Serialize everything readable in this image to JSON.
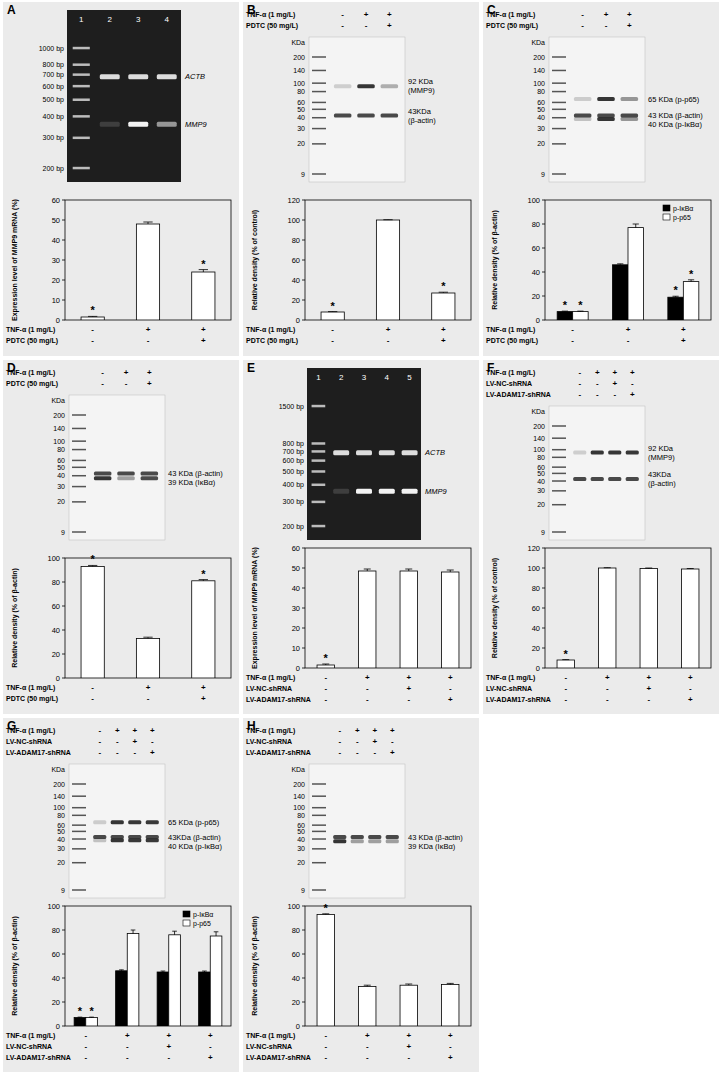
{
  "panels": [
    {
      "letter": "A",
      "gel": {
        "lanes": [
          "1",
          "2",
          "3",
          "4"
        ],
        "ladder": [
          {
            "value": 1000,
            "label": "1000 bp"
          },
          {
            "value": 800,
            "label": "800 bp"
          },
          {
            "value": 700,
            "label": "700 bp"
          },
          {
            "value": 600,
            "label": "600 bp"
          },
          {
            "value": 500,
            "label": "500 bp"
          },
          {
            "value": 400,
            "label": "400 bp"
          },
          {
            "value": 300,
            "label": "300 bp"
          },
          {
            "value": 200,
            "label": "200 bp"
          }
        ],
        "bands": [
          [
            "ACTB"
          ],
          [
            "MMP9"
          ]
        ]
      },
      "conditions": [
        {
          "label": "TNF-α (1 mg/L)",
          "signs": [
            "-",
            "+",
            "+"
          ]
        },
        {
          "label": "PDTC (50 mg/L)",
          "signs": [
            "-",
            "-",
            "+"
          ]
        }
      ]
    },
    {
      "letter": "B",
      "blot": {
        "unit": "KDa",
        "ladder": [
          200,
          140,
          100,
          80,
          60,
          50,
          40,
          30,
          20,
          9
        ],
        "bands": [
          [
            "92 KDa",
            "(MMP9)"
          ],
          [
            "43KDa",
            "(β-actin)"
          ]
        ]
      },
      "conditions": [
        {
          "label": "TNF-α (1 mg/L)",
          "signs": [
            "-",
            "+",
            "+"
          ]
        },
        {
          "label": "PDTC (50 mg/L)",
          "signs": [
            "-",
            "-",
            "+"
          ]
        }
      ]
    },
    {
      "letter": "C",
      "blot": {
        "unit": "KDa",
        "ladder": [
          200,
          140,
          100,
          80,
          60,
          50,
          40,
          30,
          20,
          9
        ],
        "bands": [
          [
            "65 KDa (p-p65)"
          ],
          [
            "43 KDa (β-actin)"
          ],
          [
            "40 KDa (p-IκBα)"
          ]
        ]
      },
      "conditions": [
        {
          "label": "TNF-α (1 mg/L)",
          "signs": [
            "-",
            "+",
            "+"
          ]
        },
        {
          "label": "PDTC (50 mg/L)",
          "signs": [
            "-",
            "-",
            "+"
          ]
        }
      ]
    },
    {
      "letter": "D",
      "blot": {
        "unit": "KDa",
        "ladder": [
          200,
          140,
          100,
          80,
          60,
          50,
          40,
          30,
          20,
          9
        ],
        "bands": [
          [
            "43 KDa (β-actin)"
          ],
          [
            "39 KDa (IκBα)"
          ]
        ]
      },
      "conditions": [
        {
          "label": "TNF-α (1 mg/L)",
          "signs": [
            "-",
            "+",
            "+"
          ]
        },
        {
          "label": "PDTC (50 mg/L)",
          "signs": [
            "-",
            "-",
            "+"
          ]
        }
      ]
    },
    {
      "letter": "E",
      "gel": {
        "lanes": [
          "1",
          "2",
          "3",
          "4",
          "5"
        ],
        "ladder": [
          {
            "value": 1500,
            "label": "1500 bp"
          },
          {
            "value": 800,
            "label": "800 bp"
          },
          {
            "value": 700,
            "label": "700 bp"
          },
          {
            "value": 600,
            "label": "600 bp"
          },
          {
            "value": 500,
            "label": "500 bp"
          },
          {
            "value": 400,
            "label": "400 bp"
          },
          {
            "value": 300,
            "label": "300 bp"
          },
          {
            "value": 200,
            "label": "200 bp"
          }
        ],
        "bands": [
          [
            "ACTB"
          ],
          [
            "MMP9"
          ]
        ]
      },
      "conditions": [
        {
          "label": "TNF-α (1 mg/L)",
          "signs": [
            "-",
            "+",
            "+",
            "+"
          ]
        },
        {
          "label": "LV-NC-shRNA",
          "signs": [
            "-",
            "-",
            "+",
            "-"
          ]
        },
        {
          "label": "LV-ADAM17-shRNA",
          "signs": [
            "-",
            "-",
            "-",
            "+"
          ]
        }
      ]
    },
    {
      "letter": "F",
      "blot": {
        "unit": "KDa",
        "ladder": [
          200,
          140,
          100,
          80,
          60,
          50,
          40,
          30,
          20,
          9
        ],
        "bands": [
          [
            "92 KDa",
            "(MMP9)"
          ],
          [
            "43KDa",
            "(β-actin)"
          ]
        ]
      },
      "conditions": [
        {
          "label": "TNF-α (1 mg/L)",
          "signs": [
            "-",
            "+",
            "+",
            "+"
          ]
        },
        {
          "label": "LV-NC-shRNA",
          "signs": [
            "-",
            "-",
            "+",
            "-"
          ]
        },
        {
          "label": "LV-ADAM17-shRNA",
          "signs": [
            "-",
            "-",
            "-",
            "+"
          ]
        }
      ]
    },
    {
      "letter": "G",
      "blot": {
        "unit": "KDa",
        "ladder": [
          200,
          140,
          100,
          80,
          60,
          50,
          40,
          30,
          20,
          9
        ],
        "bands": [
          [
            "65 KDa (p-p65)"
          ],
          [
            "43KDa (β-actin)"
          ],
          [
            "40 KDa (p-IκBα)"
          ]
        ]
      },
      "conditions": [
        {
          "label": "TNF-α (1 mg/L)",
          "signs": [
            "-",
            "+",
            "+",
            "+"
          ]
        },
        {
          "label": "LV-NC-shRNA",
          "signs": [
            "-",
            "-",
            "+",
            "-"
          ]
        },
        {
          "label": "LV-ADAM17-shRNA",
          "signs": [
            "-",
            "-",
            "-",
            "+"
          ]
        }
      ]
    },
    {
      "letter": "H",
      "blot": {
        "unit": "KDa",
        "ladder": [
          200,
          140,
          100,
          80,
          60,
          50,
          40,
          30,
          20,
          9
        ],
        "bands": [
          [
            "43 KDa (β-actin)"
          ],
          [
            "39 KDa (IκBα)"
          ]
        ]
      },
      "conditions": [
        {
          "label": "TNF-α (1 mg/L)",
          "signs": [
            "-",
            "+",
            "+",
            "+"
          ]
        },
        {
          "label": "LV-NC-shRNA",
          "signs": [
            "-",
            "-",
            "+",
            "-"
          ]
        },
        {
          "label": "LV-ADAM17-shRNA",
          "signs": [
            "-",
            "-",
            "-",
            "+"
          ]
        }
      ]
    }
  ],
  "chart_data": [
    {
      "type": "bar",
      "ylabel": "Expression level of MMP9 mRNA (%)",
      "categories": [
        null,
        null,
        null
      ],
      "ylim": [
        0,
        60
      ],
      "yticks": [
        0,
        10,
        20,
        30,
        40,
        50,
        60
      ],
      "grid": false,
      "series": [
        {
          "color": "#ffffff",
          "values": [
            1.5,
            48,
            24
          ],
          "errors": [
            0.3,
            1,
            1.2
          ],
          "annotations": [
            "*",
            null,
            "*"
          ]
        }
      ]
    },
    {
      "type": "bar",
      "ylabel": "Relative density (% of control)",
      "categories": [
        null,
        null,
        null
      ],
      "ylim": [
        0,
        120
      ],
      "yticks": [
        0,
        20,
        40,
        60,
        80,
        100,
        120
      ],
      "grid": false,
      "series": [
        {
          "color": "#ffffff",
          "values": [
            8,
            100,
            27
          ],
          "errors": [
            0.4,
            0.3,
            0.8
          ],
          "annotations": [
            "*",
            null,
            "*"
          ]
        }
      ]
    },
    {
      "type": "bar",
      "ylabel": "Relative density (% of β-actin)",
      "categories": [
        null,
        null,
        null
      ],
      "ylim": [
        0,
        100
      ],
      "yticks": [
        0,
        20,
        40,
        60,
        80,
        100
      ],
      "grid": false,
      "legend": "upper right",
      "series": [
        {
          "name": "p-IκBα",
          "color": "#000000",
          "values": [
            7,
            46,
            19
          ],
          "errors": [
            0.4,
            0.8,
            0.8
          ],
          "annotations": [
            "*",
            null,
            "*"
          ]
        },
        {
          "name": "p-p65",
          "color": "#ffffff",
          "values": [
            7,
            77,
            32
          ],
          "errors": [
            0.4,
            3,
            1.5
          ],
          "annotations": [
            "*",
            null,
            "*"
          ]
        }
      ]
    },
    {
      "type": "bar",
      "ylabel": "Relative density (% of β-actin)",
      "categories": [
        null,
        null,
        null
      ],
      "ylim": [
        0,
        100
      ],
      "yticks": [
        0,
        20,
        40,
        60,
        80,
        100
      ],
      "grid": false,
      "series": [
        {
          "color": "#ffffff",
          "values": [
            93,
            33,
            81
          ],
          "errors": [
            0.8,
            1,
            1
          ],
          "annotations": [
            "*",
            null,
            "*"
          ]
        }
      ]
    },
    {
      "type": "bar",
      "ylabel": "Expression level of MMP9 mRNA (%)",
      "categories": [
        null,
        null,
        null,
        null
      ],
      "ylim": [
        0,
        60
      ],
      "yticks": [
        0,
        10,
        20,
        30,
        40,
        50,
        60
      ],
      "grid": false,
      "series": [
        {
          "color": "#ffffff",
          "values": [
            1.5,
            48.5,
            48.5,
            48
          ],
          "errors": [
            0.5,
            1,
            1,
            1
          ],
          "annotations": [
            "*",
            null,
            null,
            null
          ]
        }
      ]
    },
    {
      "type": "bar",
      "ylabel": "Relative density (% of control)",
      "categories": [
        null,
        null,
        null,
        null
      ],
      "ylim": [
        0,
        120
      ],
      "yticks": [
        0,
        20,
        40,
        60,
        80,
        100,
        120
      ],
      "grid": false,
      "series": [
        {
          "color": "#ffffff",
          "values": [
            8,
            100,
            99.5,
            99
          ],
          "errors": [
            0.4,
            0.3,
            0.5,
            0.5
          ],
          "annotations": [
            "*",
            null,
            null,
            null
          ]
        }
      ]
    },
    {
      "type": "bar",
      "ylabel": "Relative density (% of β-actin)",
      "categories": [
        null,
        null,
        null,
        null
      ],
      "ylim": [
        0,
        100
      ],
      "yticks": [
        0,
        20,
        40,
        60,
        80,
        100
      ],
      "grid": false,
      "legend": "upper right",
      "series": [
        {
          "name": "p-IκBα",
          "color": "#000000",
          "values": [
            7,
            46,
            45,
            45
          ],
          "errors": [
            0.4,
            0.8,
            0.8,
            0.8
          ],
          "annotations": [
            "*",
            null,
            null,
            null
          ]
        },
        {
          "name": "p-p65",
          "color": "#ffffff",
          "values": [
            7,
            77,
            76,
            75
          ],
          "errors": [
            0.4,
            3,
            3,
            3.5
          ],
          "annotations": [
            "*",
            null,
            null,
            null
          ]
        }
      ]
    },
    {
      "type": "bar",
      "ylabel": "Relative density (% of β-actin)",
      "categories": [
        null,
        null,
        null,
        null
      ],
      "ylim": [
        0,
        100
      ],
      "yticks": [
        0,
        20,
        40,
        60,
        80,
        100
      ],
      "grid": false,
      "series": [
        {
          "color": "#ffffff",
          "values": [
            93,
            33,
            34,
            34.5
          ],
          "errors": [
            0.5,
            1,
            1,
            1
          ],
          "annotations": [
            "*",
            null,
            null,
            null
          ]
        }
      ]
    }
  ]
}
